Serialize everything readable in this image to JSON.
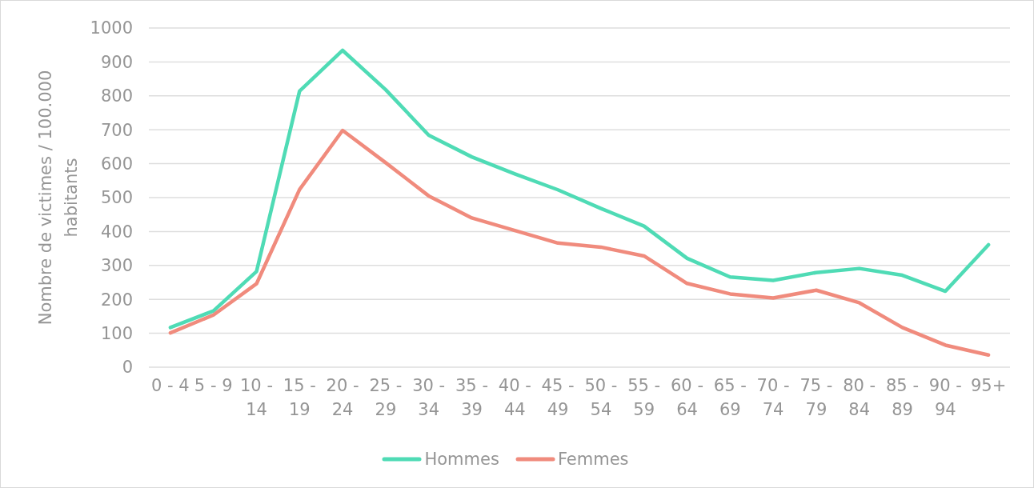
{
  "chart_data": {
    "type": "line",
    "ylabel": "Nombre de victimes / 100.000 habitants",
    "categories": [
      "0 - 4",
      "5 - 9",
      "10 - 14",
      "15 - 19",
      "20 - 24",
      "25 - 29",
      "30 - 34",
      "35 - 39",
      "40 - 44",
      "45 - 49",
      "50 - 54",
      "55 - 59",
      "60 - 64",
      "65 - 69",
      "70 - 74",
      "75 - 79",
      "80 - 84",
      "85 - 89",
      "90 - 94",
      "95+"
    ],
    "series": [
      {
        "name": "Hommes",
        "color": "#4fdbb5",
        "values": [
          117,
          166,
          282,
          814,
          934,
          818,
          684,
          620,
          570,
          523,
          468,
          416,
          321,
          266,
          256,
          279,
          291,
          271,
          224,
          361
        ]
      },
      {
        "name": "Femmes",
        "color": "#f08b7d",
        "values": [
          101,
          154,
          246,
          524,
          698,
          603,
          505,
          440,
          403,
          366,
          354,
          328,
          247,
          216,
          204,
          227,
          190,
          117,
          65,
          36
        ]
      }
    ],
    "ylim": [
      0,
      1000
    ],
    "yticks": [
      0,
      100,
      200,
      300,
      400,
      500,
      600,
      700,
      800,
      900,
      1000
    ],
    "grid": "y",
    "legend": "bottom",
    "line_style": "solid"
  }
}
